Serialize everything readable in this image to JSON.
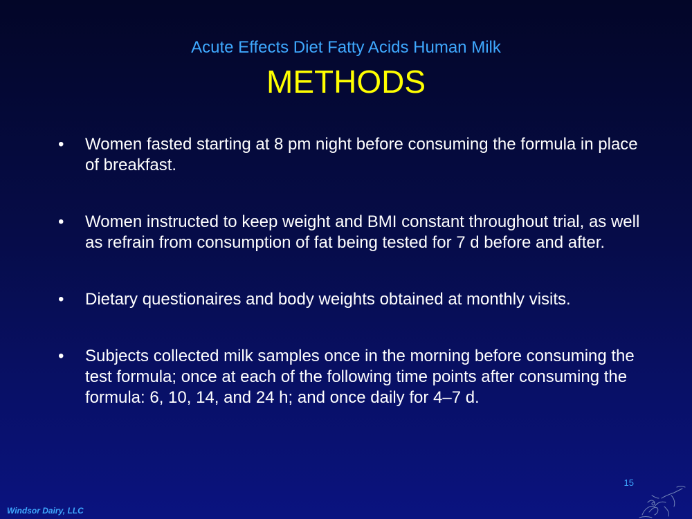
{
  "slide": {
    "subtitle": "Acute Effects Diet Fatty Acids Human Milk",
    "title": "METHODS",
    "bullet_marker": "•",
    "bullets": [
      "Women fasted starting at 8 pm night before consuming the formula in place of breakfast.",
      "Women instructed to keep weight and BMI constant throughout trial, as well as refrain from consumption of fat being tested for 7 d before and after.",
      "Dietary questionaires and body weights obtained at monthly visits.",
      "Subjects collected milk samples once in the morning before consuming the test formula; once at each of the following time points after consuming the formula: 6, 10, 14, and 24 h; and once daily for 4–7 d."
    ],
    "page_number": "15",
    "footer": "Windsor Dairy, LLC",
    "logo_icon": "cow-sketch-icon"
  }
}
